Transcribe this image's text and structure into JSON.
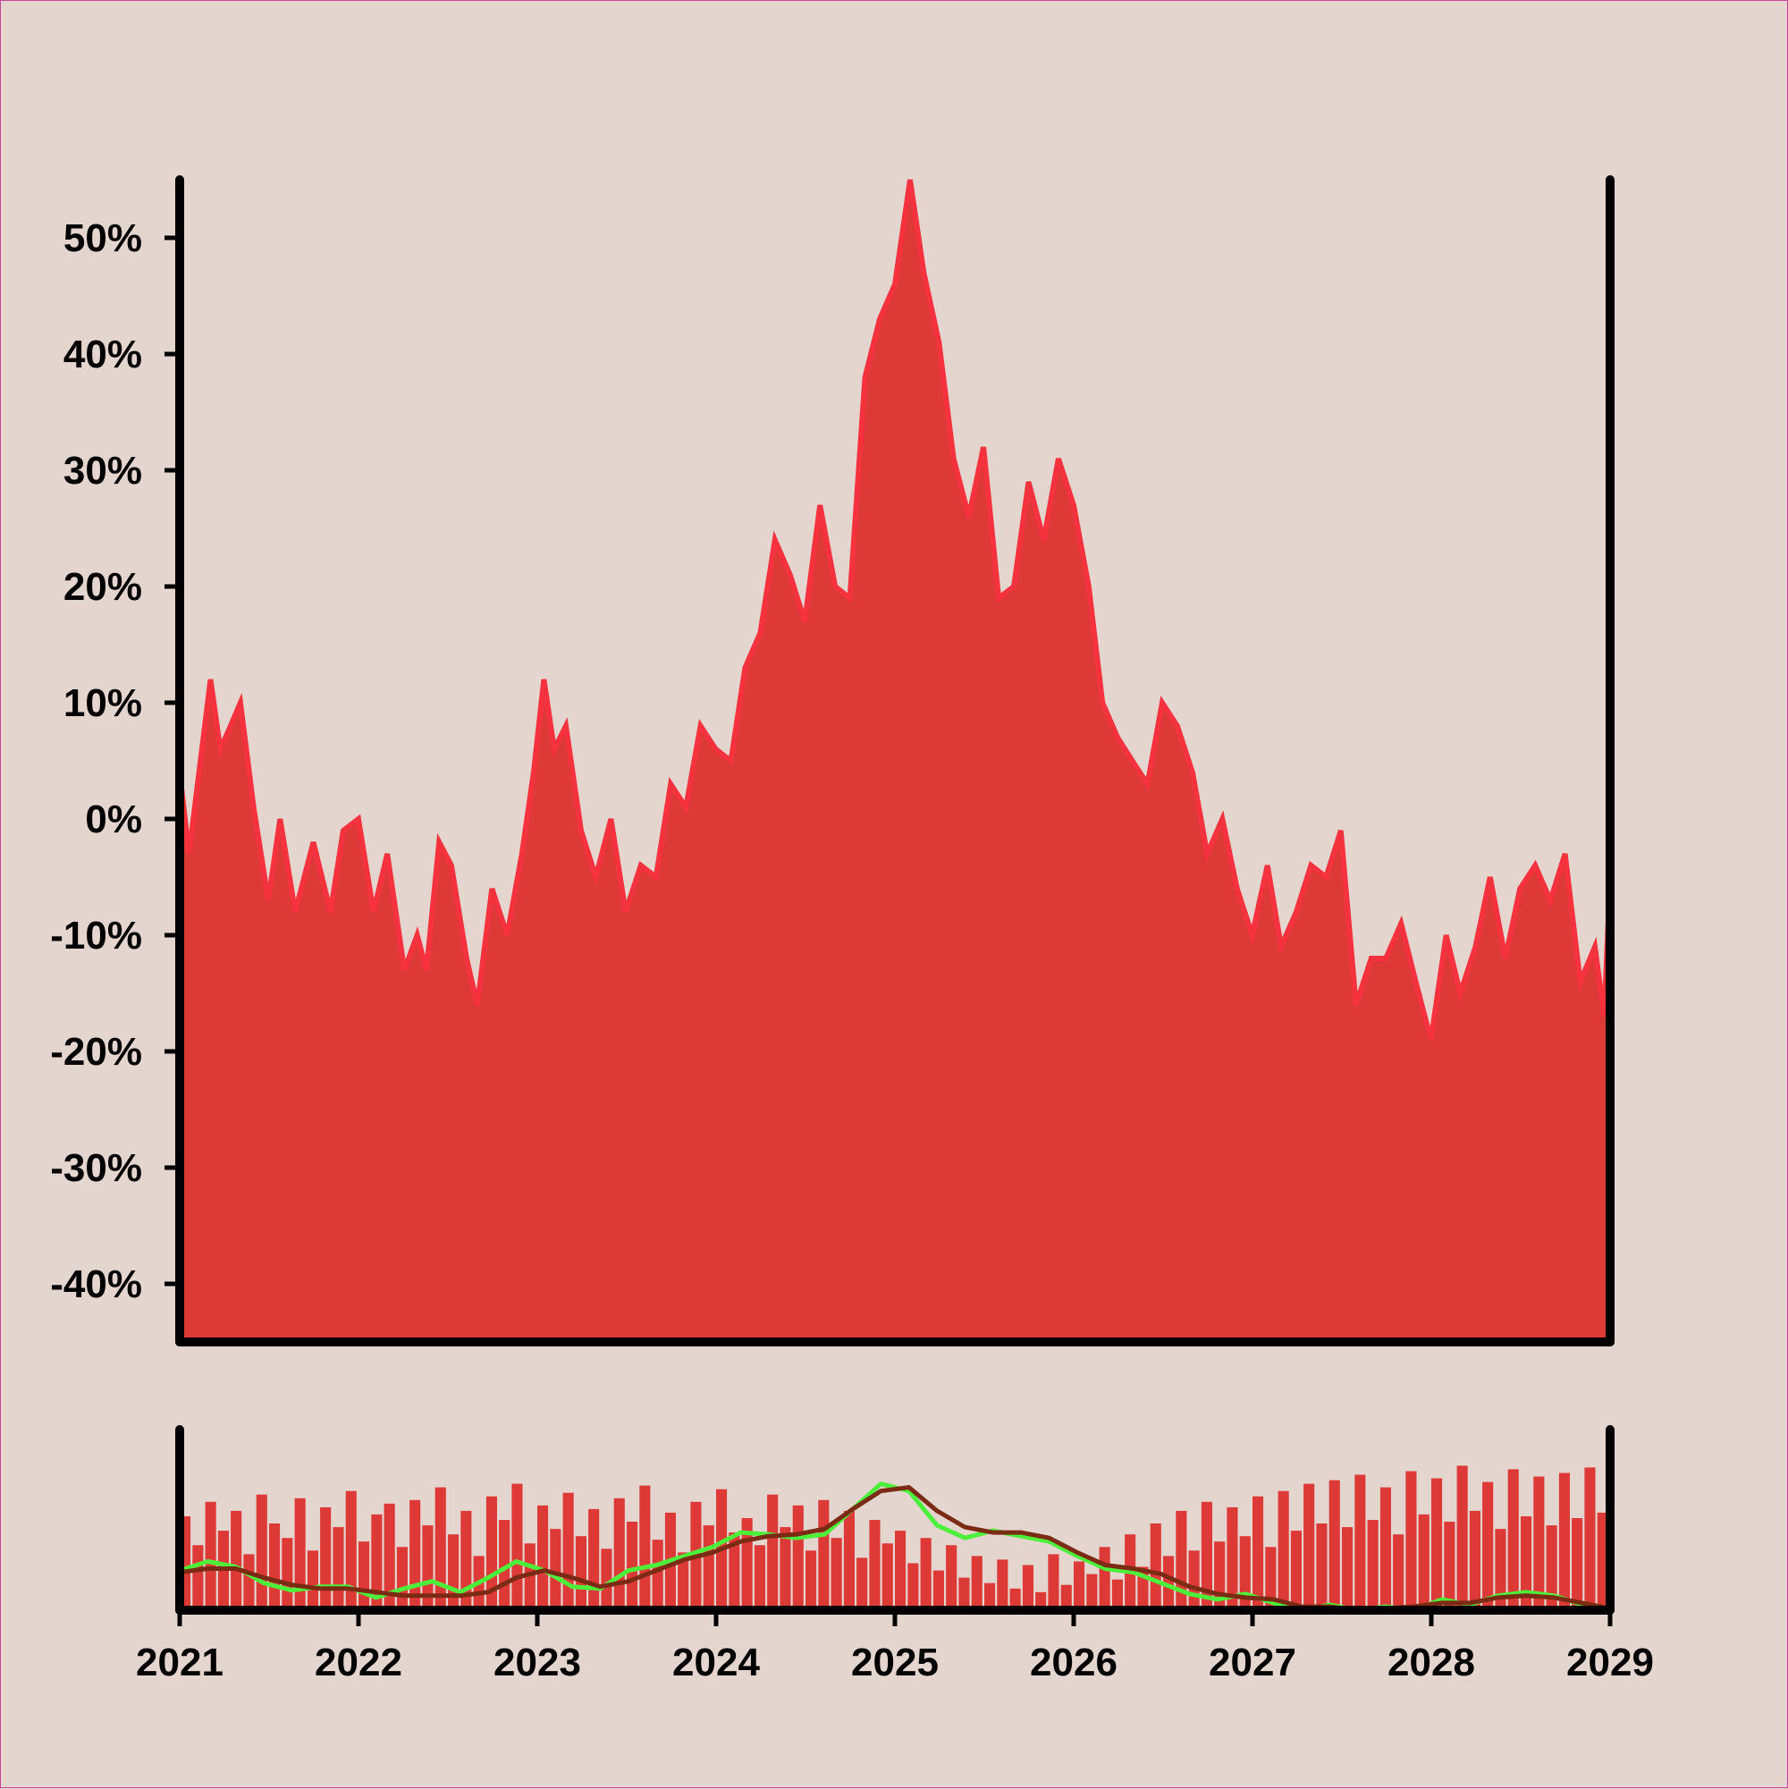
{
  "colors": {
    "background": "#e5d5cf",
    "border": "#c8439a",
    "area_fill": "#dd3936",
    "area_edge": "#f5323e",
    "volume_bars": "#dd3936",
    "fast_line": "#4cf03a",
    "slow_line": "#7b2a14",
    "axis": "#000000"
  },
  "chart_data": {
    "type": "area",
    "title": "",
    "xlabel": "",
    "ylabel": "",
    "grid": false,
    "legend": "none",
    "x_range": [
      "2021-01-01",
      "2029-01-01"
    ],
    "ylim": [
      -0.45,
      0.55
    ],
    "x_tick_labels": [
      "2021",
      "2022",
      "2023",
      "2024",
      "2025",
      "2026",
      "2027",
      "2028",
      "2029"
    ],
    "y_tick_labels": [
      "-40%",
      "-30%",
      "-20%",
      "-10%",
      "0%",
      "10%",
      "20%",
      "30%",
      "40%",
      "50%"
    ],
    "y_ticks": [
      -0.4,
      -0.3,
      -0.2,
      -0.1,
      0,
      0.1,
      0.2,
      0.3,
      0.4,
      0.5
    ],
    "series": [
      {
        "values": [
          [
            "2021-01-01",
            0.04
          ],
          [
            "2021-01-20",
            -0.03
          ],
          [
            "2021-03-05",
            0.12
          ],
          [
            "2021-03-25",
            0.06
          ],
          [
            "2021-04-15",
            0.08
          ],
          [
            "2021-05-05",
            0.1
          ],
          [
            "2021-06-01",
            0.01
          ],
          [
            "2021-07-01",
            -0.07
          ],
          [
            "2021-07-25",
            0.0
          ],
          [
            "2021-08-25",
            -0.08
          ],
          [
            "2021-10-01",
            -0.02
          ],
          [
            "2021-11-05",
            -0.08
          ],
          [
            "2021-12-01",
            -0.01
          ],
          [
            "2022-01-01",
            0.0
          ],
          [
            "2022-02-01",
            -0.08
          ],
          [
            "2022-03-01",
            -0.03
          ],
          [
            "2022-04-05",
            -0.13
          ],
          [
            "2022-05-01",
            -0.1
          ],
          [
            "2022-05-20",
            -0.13
          ],
          [
            "2022-06-15",
            -0.02
          ],
          [
            "2022-07-10",
            -0.04
          ],
          [
            "2022-08-10",
            -0.12
          ],
          [
            "2022-09-01",
            -0.16
          ],
          [
            "2022-10-01",
            -0.06
          ],
          [
            "2022-11-01",
            -0.1
          ],
          [
            "2022-12-01",
            -0.03
          ],
          [
            "2022-12-25",
            0.04
          ],
          [
            "2023-01-15",
            0.12
          ],
          [
            "2023-02-05",
            0.06
          ],
          [
            "2023-03-01",
            0.08
          ],
          [
            "2023-04-01",
            -0.01
          ],
          [
            "2023-05-01",
            -0.05
          ],
          [
            "2023-06-01",
            0.0
          ],
          [
            "2023-07-01",
            -0.08
          ],
          [
            "2023-08-01",
            -0.04
          ],
          [
            "2023-09-01",
            -0.05
          ],
          [
            "2023-10-01",
            0.03
          ],
          [
            "2023-11-01",
            0.01
          ],
          [
            "2023-12-01",
            0.08
          ],
          [
            "2024-01-01",
            0.06
          ],
          [
            "2024-02-01",
            0.05
          ],
          [
            "2024-03-01",
            0.13
          ],
          [
            "2024-04-01",
            0.16
          ],
          [
            "2024-05-01",
            0.24
          ],
          [
            "2024-06-01",
            0.21
          ],
          [
            "2024-07-01",
            0.17
          ],
          [
            "2024-08-01",
            0.27
          ],
          [
            "2024-09-01",
            0.2
          ],
          [
            "2024-10-01",
            0.19
          ],
          [
            "2024-11-01",
            0.38
          ],
          [
            "2024-12-01",
            0.43
          ],
          [
            "2025-01-01",
            0.46
          ],
          [
            "2025-02-01",
            0.55
          ],
          [
            "2025-03-01",
            0.47
          ],
          [
            "2025-04-01",
            0.41
          ],
          [
            "2025-05-01",
            0.31
          ],
          [
            "2025-06-01",
            0.26
          ],
          [
            "2025-07-01",
            0.32
          ],
          [
            "2025-08-01",
            0.19
          ],
          [
            "2025-09-01",
            0.2
          ],
          [
            "2025-10-01",
            0.29
          ],
          [
            "2025-11-01",
            0.24
          ],
          [
            "2025-12-01",
            0.31
          ],
          [
            "2026-01-01",
            0.27
          ],
          [
            "2026-02-01",
            0.2
          ],
          [
            "2026-03-01",
            0.1
          ],
          [
            "2026-04-01",
            0.07
          ],
          [
            "2026-05-01",
            0.05
          ],
          [
            "2026-06-01",
            0.03
          ],
          [
            "2026-07-01",
            0.1
          ],
          [
            "2026-08-01",
            0.08
          ],
          [
            "2026-09-01",
            0.04
          ],
          [
            "2026-10-01",
            -0.03
          ],
          [
            "2026-11-01",
            0.0
          ],
          [
            "2026-12-01",
            -0.06
          ],
          [
            "2027-01-01",
            -0.1
          ],
          [
            "2027-02-01",
            -0.04
          ],
          [
            "2027-03-01",
            -0.11
          ],
          [
            "2027-04-01",
            -0.08
          ],
          [
            "2027-05-01",
            -0.04
          ],
          [
            "2027-06-01",
            -0.05
          ],
          [
            "2027-07-01",
            -0.01
          ],
          [
            "2027-08-01",
            -0.16
          ],
          [
            "2027-09-01",
            -0.12
          ],
          [
            "2027-10-01",
            -0.12
          ],
          [
            "2027-11-01",
            -0.09
          ],
          [
            "2027-12-01",
            -0.14
          ],
          [
            "2028-01-01",
            -0.19
          ],
          [
            "2028-02-01",
            -0.1
          ],
          [
            "2028-03-01",
            -0.15
          ],
          [
            "2028-04-01",
            -0.11
          ],
          [
            "2028-05-01",
            -0.05
          ],
          [
            "2028-06-01",
            -0.12
          ],
          [
            "2028-07-01",
            -0.06
          ],
          [
            "2028-08-01",
            -0.04
          ],
          [
            "2028-09-01",
            -0.07
          ],
          [
            "2028-10-01",
            -0.03
          ],
          [
            "2028-11-01",
            -0.14
          ],
          [
            "2028-12-01",
            -0.11
          ],
          [
            "2028-12-20",
            -0.17
          ],
          [
            "2029-01-01",
            -0.05
          ]
        ]
      }
    ],
    "volume_panel": {
      "type": "bar",
      "y_tick_labels": [],
      "note_series": [
        "moving average (green)",
        "moving average (brown)"
      ],
      "bar_values": [
        0.52,
        0.36,
        0.6,
        0.44,
        0.55,
        0.31,
        0.64,
        0.48,
        0.4,
        0.62,
        0.33,
        0.57,
        0.46,
        0.66,
        0.38,
        0.53,
        0.59,
        0.35,
        0.61,
        0.47,
        0.68,
        0.42,
        0.55,
        0.3,
        0.63,
        0.5,
        0.7,
        0.37,
        0.58,
        0.45,
        0.65,
        0.41,
        0.56,
        0.34,
        0.62,
        0.49,
        0.69,
        0.39,
        0.54,
        0.32,
        0.6,
        0.47,
        0.67,
        0.43,
        0.51,
        0.36,
        0.64,
        0.46,
        0.58,
        0.33,
        0.61,
        0.4,
        0.55,
        0.29,
        0.5,
        0.37,
        0.44,
        0.26,
        0.4,
        0.22,
        0.36,
        0.18,
        0.3,
        0.15,
        0.28,
        0.12,
        0.25,
        0.1,
        0.31,
        0.14,
        0.27,
        0.2,
        0.35,
        0.17,
        0.42,
        0.24,
        0.48,
        0.3,
        0.55,
        0.33,
        0.6,
        0.38,
        0.57,
        0.41,
        0.63,
        0.35,
        0.66,
        0.44,
        0.7,
        0.48,
        0.72,
        0.46,
        0.75,
        0.5,
        0.68,
        0.42,
        0.77,
        0.53,
        0.73,
        0.49,
        0.8,
        0.55,
        0.71,
        0.45,
        0.78,
        0.52,
        0.74,
        0.47,
        0.76,
        0.51,
        0.79,
        0.54
      ],
      "fast_ma": [
        0.22,
        0.27,
        0.24,
        0.15,
        0.11,
        0.13,
        0.13,
        0.07,
        0.12,
        0.16,
        0.1,
        0.18,
        0.27,
        0.22,
        0.13,
        0.12,
        0.22,
        0.25,
        0.3,
        0.35,
        0.43,
        0.42,
        0.4,
        0.42,
        0.56,
        0.7,
        0.66,
        0.47,
        0.4,
        0.44,
        0.41,
        0.38,
        0.3,
        0.23,
        0.21,
        0.15,
        0.09,
        0.06,
        0.09,
        0.04,
        0.0,
        0.03,
        0.0,
        0.02,
        0.0,
        0.06,
        0.03,
        0.08,
        0.1,
        0.08,
        0.03,
        0.0
      ],
      "slow_ma": [
        0.21,
        0.23,
        0.23,
        0.18,
        0.14,
        0.12,
        0.12,
        0.1,
        0.08,
        0.08,
        0.08,
        0.1,
        0.18,
        0.22,
        0.18,
        0.13,
        0.16,
        0.22,
        0.28,
        0.32,
        0.38,
        0.41,
        0.42,
        0.45,
        0.56,
        0.66,
        0.68,
        0.55,
        0.46,
        0.43,
        0.43,
        0.4,
        0.32,
        0.25,
        0.23,
        0.2,
        0.13,
        0.09,
        0.07,
        0.06,
        0.02,
        0.02,
        0.0,
        0.01,
        0.02,
        0.04,
        0.04,
        0.07,
        0.08,
        0.07,
        0.04,
        0.01
      ]
    }
  }
}
